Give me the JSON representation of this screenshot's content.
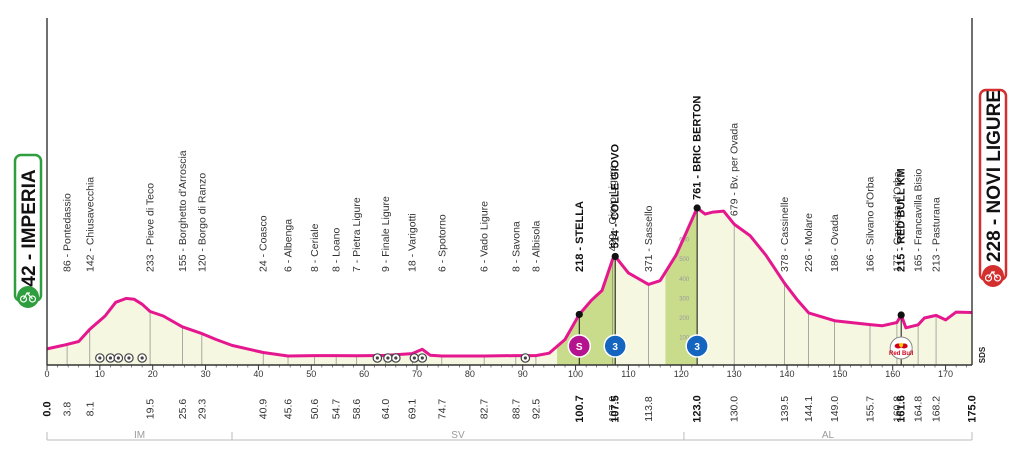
{
  "chart_data": {
    "type": "area",
    "x_unit": "km",
    "y_unit": "m",
    "xlim": [
      0,
      175
    ],
    "x_ticks": [
      0,
      10,
      20,
      30,
      40,
      50,
      60,
      70,
      80,
      90,
      100,
      110,
      120,
      130,
      140,
      150,
      160,
      170
    ],
    "altitude_scale_labels": [
      "600",
      "500",
      "400",
      "300",
      "200",
      "100"
    ],
    "profile": [
      [
        0,
        42
      ],
      [
        3,
        60
      ],
      [
        6,
        80
      ],
      [
        8.1,
        142
      ],
      [
        11,
        210
      ],
      [
        13,
        280
      ],
      [
        15,
        300
      ],
      [
        16.5,
        295
      ],
      [
        18,
        270
      ],
      [
        19.5,
        233
      ],
      [
        22,
        210
      ],
      [
        25.6,
        155
      ],
      [
        29.3,
        120
      ],
      [
        32,
        90
      ],
      [
        35,
        60
      ],
      [
        40.9,
        24
      ],
      [
        45.6,
        6
      ],
      [
        50.6,
        8
      ],
      [
        54.7,
        8
      ],
      [
        58.6,
        7
      ],
      [
        64,
        9
      ],
      [
        69.1,
        18
      ],
      [
        71,
        40
      ],
      [
        72.5,
        10
      ],
      [
        74.7,
        6
      ],
      [
        78,
        6
      ],
      [
        82.7,
        6
      ],
      [
        88.7,
        8
      ],
      [
        92.5,
        8
      ],
      [
        95,
        20
      ],
      [
        98,
        90
      ],
      [
        100.7,
        218
      ],
      [
        103,
        290
      ],
      [
        105,
        340
      ],
      [
        107,
        499
      ],
      [
        107.5,
        514
      ],
      [
        110,
        430
      ],
      [
        113.8,
        371
      ],
      [
        116,
        390
      ],
      [
        119,
        520
      ],
      [
        121,
        640
      ],
      [
        123,
        761
      ],
      [
        124.5,
        730
      ],
      [
        126,
        740
      ],
      [
        128,
        745
      ],
      [
        130,
        679
      ],
      [
        133,
        620
      ],
      [
        136,
        520
      ],
      [
        139.5,
        378
      ],
      [
        142,
        290
      ],
      [
        144.1,
        226
      ],
      [
        149,
        186
      ],
      [
        155.7,
        166
      ],
      [
        158,
        160
      ],
      [
        160.8,
        177
      ],
      [
        161.6,
        215
      ],
      [
        162.5,
        150
      ],
      [
        164.8,
        165
      ],
      [
        166,
        200
      ],
      [
        168.2,
        213
      ],
      [
        170,
        190
      ],
      [
        172,
        230
      ],
      [
        175,
        228
      ]
    ],
    "points": [
      {
        "name": "Pontedassio",
        "km": "3.8",
        "km_value": 3.8,
        "alt": "86"
      },
      {
        "name": "Chiusavecchia",
        "km": "8.1",
        "km_value": 8.1,
        "alt": "142"
      },
      {
        "name": "Pieve di Teco",
        "km": "19.5",
        "km_value": 19.5,
        "alt": "233"
      },
      {
        "name": "Borghetto d'Arroscia",
        "km": "25.6",
        "km_value": 25.6,
        "alt": "155"
      },
      {
        "name": "Borgo di Ranzo",
        "km": "29.3",
        "km_value": 29.3,
        "alt": "120"
      },
      {
        "name": "Coasco",
        "km": "40.9",
        "km_value": 40.9,
        "alt": "24"
      },
      {
        "name": "Albenga",
        "km": "45.6",
        "km_value": 45.6,
        "alt": "6"
      },
      {
        "name": "Ceriale",
        "km": "50.6",
        "km_value": 50.6,
        "alt": "8"
      },
      {
        "name": "Loano",
        "km": "54.7",
        "km_value": 54.7,
        "alt": "8"
      },
      {
        "name": "Pietra Ligure",
        "km": "58.6",
        "km_value": 58.6,
        "alt": "7"
      },
      {
        "name": "Finale Ligure",
        "km": "64.0",
        "km_value": 64.0,
        "alt": "9"
      },
      {
        "name": "Varigotti",
        "km": "69.1",
        "km_value": 69.1,
        "alt": "18"
      },
      {
        "name": "Spotorno",
        "km": "74.7",
        "km_value": 74.7,
        "alt": "6"
      },
      {
        "name": "Vado Ligure",
        "km": "82.7",
        "km_value": 82.7,
        "alt": "6"
      },
      {
        "name": "Savona",
        "km": "88.7",
        "km_value": 88.7,
        "alt": "8"
      },
      {
        "name": "Albisola",
        "km": "92.5",
        "km_value": 92.5,
        "alt": "8"
      },
      {
        "name": "STELLA",
        "km": "100.7",
        "km_value": 100.7,
        "alt": "218",
        "bold": true,
        "marker": true
      },
      {
        "name": "Giovo Ligure",
        "km": "107.0",
        "km_value": 107.0,
        "alt": "499"
      },
      {
        "name": "COLLE GIOVO",
        "km": "107.5",
        "km_value": 107.5,
        "alt": "514",
        "bold": true,
        "marker": true
      },
      {
        "name": "Sassello",
        "km": "113.8",
        "km_value": 113.8,
        "alt": "371"
      },
      {
        "name": "BRIC BERTON",
        "km": "123.0",
        "km_value": 123.0,
        "alt": "761",
        "bold": true,
        "marker": true
      },
      {
        "name": "Bv. per Ovada",
        "km": "130.0",
        "km_value": 130.0,
        "alt": "679"
      },
      {
        "name": "Cassinelle",
        "km": "139.5",
        "km_value": 139.5,
        "alt": "378"
      },
      {
        "name": "Molare",
        "km": "144.1",
        "km_value": 144.1,
        "alt": "226"
      },
      {
        "name": "Ovada",
        "km": "149.0",
        "km_value": 149.0,
        "alt": "186"
      },
      {
        "name": "Silvano d'Orba",
        "km": "155.7",
        "km_value": 155.7,
        "alt": "166"
      },
      {
        "name": "Capriata d'Orba",
        "km": "160.8",
        "km_value": 160.8,
        "alt": "177"
      },
      {
        "name": "RED BULL KM",
        "km": "161.6",
        "km_value": 161.6,
        "alt": "215",
        "bold": true,
        "marker": true
      },
      {
        "name": "Francavilla Bisio",
        "km": "164.8",
        "km_value": 164.8,
        "alt": "165"
      },
      {
        "name": "Pasturana",
        "km": "168.2",
        "km_value": 168.2,
        "alt": "213"
      }
    ],
    "start": {
      "name": "IMPERIA",
      "alt": "42",
      "km": "0.0"
    },
    "finish": {
      "name": "NOVI LIGURE",
      "alt": "228",
      "km": "175.0"
    },
    "climbs": [
      {
        "km_start": 96.5,
        "km_end": 107.5,
        "color": "#c9dc8c"
      },
      {
        "km_start": 117,
        "km_end": 123.0,
        "color": "#c9dc8c"
      }
    ],
    "climb_badges": [
      {
        "km": 100.7,
        "label": "S",
        "color": "#b5128f"
      },
      {
        "km": 107.5,
        "label": "3",
        "color": "#1565c0"
      },
      {
        "km": 123.0,
        "label": "3",
        "color": "#1565c0"
      }
    ],
    "red_bull_badge": {
      "km": 161.6,
      "label": "Red Bull"
    },
    "bumps_icons_km": [
      10,
      12,
      13.5,
      15.5,
      18,
      62.5,
      64.5,
      66,
      69.5,
      71,
      90.5
    ],
    "regions": [
      {
        "label": "IM",
        "km_from": 0,
        "km_to": 35
      },
      {
        "label": "SV",
        "km_from": 35,
        "km_to": 120.5
      },
      {
        "label": "AL",
        "km_from": 120.5,
        "km_to": 175
      }
    ],
    "brand": "SDS",
    "colors": {
      "profile_line": "#e5178f",
      "profile_fill": "#f5f7e1",
      "climb_fill": "#c9dc8c",
      "start_accent": "#2e9e3e",
      "finish_accent": "#d32f2f",
      "axis": "#333333",
      "grid": "#bbbbbb"
    }
  }
}
